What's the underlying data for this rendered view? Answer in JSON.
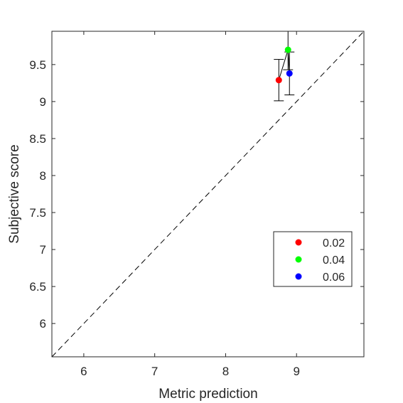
{
  "chart_data": {
    "type": "scatter",
    "title": "",
    "xlabel": "Metric prediction",
    "ylabel": "Subjective score",
    "xlim": [
      5.55,
      9.95
    ],
    "ylim": [
      5.55,
      9.95
    ],
    "xticks": [
      6,
      7,
      8,
      9
    ],
    "xtick_labels": [
      "6",
      "7",
      "8",
      "9"
    ],
    "yticks": [
      6,
      6.5,
      7,
      7.5,
      8,
      8.5,
      9,
      9.5
    ],
    "ytick_labels": [
      "6",
      "6.5",
      "7",
      "7.5",
      "8",
      "8.5",
      "9",
      "9.5"
    ],
    "grid": false,
    "legend_position": "lower-right",
    "reference_line": {
      "style": "dashed",
      "from": [
        5.55,
        5.55
      ],
      "to": [
        9.95,
        9.95
      ]
    },
    "connect_points": true,
    "series": [
      {
        "name": "0.02",
        "x": 8.75,
        "y": 9.29,
        "err_low": 9.01,
        "err_high": 9.57,
        "color": "#ff0000"
      },
      {
        "name": "0.04",
        "x": 8.88,
        "y": 9.7,
        "err_low": 9.43,
        "err_high": 9.97,
        "color": "#00ff00"
      },
      {
        "name": "0.06",
        "x": 8.9,
        "y": 9.38,
        "err_low": 9.09,
        "err_high": 9.67,
        "color": "#0000ff"
      }
    ]
  }
}
